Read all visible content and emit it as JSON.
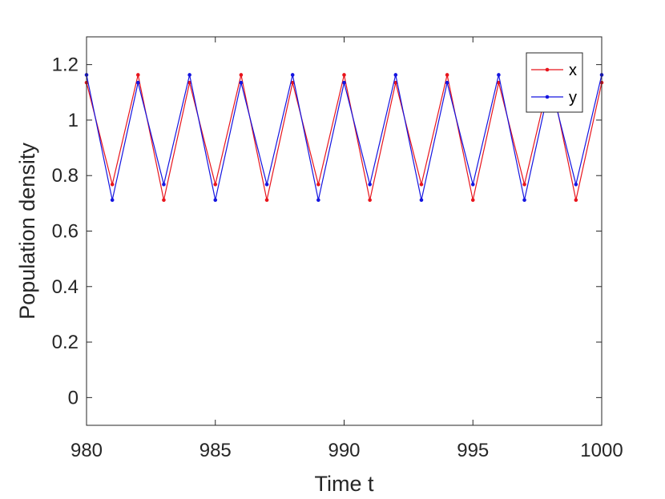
{
  "chart_data": {
    "type": "line",
    "xlabel": "Time t",
    "ylabel": "Population density",
    "xlim": [
      980,
      1000
    ],
    "ylim": [
      -0.1,
      1.3
    ],
    "xticks": [
      980,
      985,
      990,
      995,
      1000
    ],
    "yticks": [
      0,
      0.2,
      0.4,
      0.6,
      0.8,
      1,
      1.2
    ],
    "ytick_labels": [
      "0",
      "0.2",
      "0.4",
      "0.6",
      "0.8",
      "1",
      "1.2"
    ],
    "grid": false,
    "legend_position": "top-right",
    "x": [
      980,
      981,
      982,
      983,
      984,
      985,
      986,
      987,
      988,
      989,
      990,
      991,
      992,
      993,
      994,
      995,
      996,
      997,
      998,
      999,
      1000
    ],
    "series": [
      {
        "name": "x",
        "color": "#e8141c",
        "marker": "dot",
        "values": [
          1.135,
          0.768,
          1.163,
          0.712,
          1.135,
          0.768,
          1.163,
          0.712,
          1.135,
          0.768,
          1.163,
          0.712,
          1.135,
          0.768,
          1.163,
          0.712,
          1.135,
          0.768,
          1.163,
          0.712,
          1.135
        ]
      },
      {
        "name": "y",
        "color": "#1414e0",
        "marker": "dot",
        "values": [
          1.163,
          0.712,
          1.135,
          0.768,
          1.163,
          0.712,
          1.135,
          0.768,
          1.163,
          0.712,
          1.135,
          0.768,
          1.163,
          0.712,
          1.135,
          0.768,
          1.163,
          0.712,
          1.135,
          0.768,
          1.163
        ]
      }
    ]
  }
}
